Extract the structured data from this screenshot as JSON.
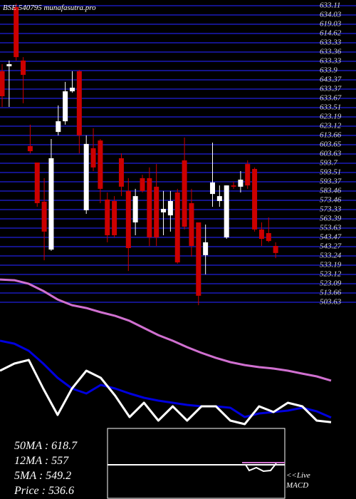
{
  "chart_data": [
    {
      "type": "candlestick",
      "title": "BSE 540795 munafasutra.pro",
      "up_color": "#ffffff",
      "down_color": "#cc0000",
      "grid_color": "#14148a",
      "ylim": [
        500,
        643
      ],
      "price_labels": [
        "633.11",
        "634.03",
        "619.03",
        "614.62",
        "633.33",
        "633.36",
        "633.33",
        "633.9",
        "643.37",
        "633.37",
        "633.67",
        "633.51",
        "623.19",
        "623.12",
        "613.66",
        "603.65",
        "603.63",
        "593.7",
        "593.51",
        "593.37",
        "583.46",
        "573.46",
        "573.33",
        "563.39",
        "553.63",
        "543.47",
        "543.27",
        "533.24",
        "533.19",
        "523.12",
        "523.09",
        "513.66",
        "503.63"
      ],
      "open": [
        609.7,
        612,
        639.7,
        614.7,
        574.7,
        567,
        548.7,
        526.3,
        581.3,
        586.3,
        600.3,
        609.7,
        544.7,
        573.7,
        577.3,
        549.7,
        549,
        569,
        553.7,
        539,
        559.7,
        559.7,
        555.7,
        543.7,
        542.3,
        553,
        568,
        548,
        539,
        523.7,
        552.3,
        549,
        532,
        556.3,
        555.7,
        566.3,
        564,
        535.7,
        534,
        528
      ],
      "high": [
        613,
        614.7,
        641.3,
        616.3,
        584.7,
        567,
        559.7,
        578,
        593.7,
        604.7,
        609.7,
        610.3,
        579.7,
        583,
        578,
        553,
        551.3,
        571.3,
        559.7,
        554.7,
        561.3,
        564.7,
        566.3,
        553.7,
        553.7,
        554.7,
        578.7,
        554.7,
        539,
        538,
        576.3,
        556.3,
        556.3,
        558,
        563,
        568,
        564.7,
        539,
        541.3,
        529.7
      ],
      "low": [
        593,
        593,
        614.7,
        594.7,
        571.3,
        546.3,
        521.3,
        525.7,
        579.7,
        584.7,
        599.7,
        571.3,
        543,
        563,
        548,
        529.7,
        532,
        551.3,
        516.3,
        533,
        553,
        528,
        528,
        533,
        534.7,
        519.7,
        535.7,
        523,
        500.3,
        514.7,
        546.3,
        546.3,
        531.3,
        554.7,
        553,
        554.7,
        534.7,
        528,
        529.7,
        522.3
      ],
      "close": [
        598,
        613,
        616.3,
        608,
        572.3,
        548,
        534.7,
        569,
        586.3,
        600.3,
        602,
        579.7,
        575.7,
        564.7,
        554.7,
        533,
        533,
        555.7,
        527,
        551.3,
        553.7,
        532,
        532,
        545.3,
        549,
        520.3,
        537,
        528,
        504.7,
        529.7,
        557.7,
        551.3,
        556.3,
        555.7,
        559,
        556.3,
        535.7,
        531.3,
        530.3,
        524.7
      ]
    },
    {
      "type": "line",
      "ylim": [
        540,
        790
      ],
      "series": [
        {
          "color": "#d070d0",
          "values": [
            787.5,
            786.3,
            780.4,
            768.5,
            754.2,
            744.7,
            739.9,
            732.8,
            726.8,
            718.5,
            706.6,
            694.7,
            685.2,
            674.5,
            665,
            656.6,
            649.5,
            644.7,
            641.2,
            638.8,
            635.2,
            630.4,
            625.7,
            618.7
          ]
        },
        {
          "color": "#0000dd",
          "values": [
            685.2,
            680.4,
            668.5,
            647.1,
            623.3,
            605.5,
            597.1,
            611.4,
            605.5,
            597.1,
            590,
            585.2,
            581.7,
            578.1,
            575.7,
            575.7,
            573.3,
            557.9,
            563.8,
            566.2,
            568.6,
            573.3,
            567.4,
            557
          ]
        },
        {
          "color": "#ffffff",
          "values": [
            635.2,
            647.1,
            653.1,
            605.5,
            561.4,
            605.5,
            635.2,
            623.3,
            593.6,
            557.9,
            581.7,
            551.9,
            575.7,
            551.9,
            575.7,
            575.7,
            551.9,
            546,
            575.7,
            566.2,
            581.7,
            575.7,
            551.9,
            549.2
          ]
        }
      ]
    }
  ],
  "readouts": [
    "50MA : 618.7",
    "12MA : 557",
    "5MA : 549.2",
    "Price   : 536.6"
  ],
  "macd_label": [
    "<<Live",
    "MACD"
  ]
}
